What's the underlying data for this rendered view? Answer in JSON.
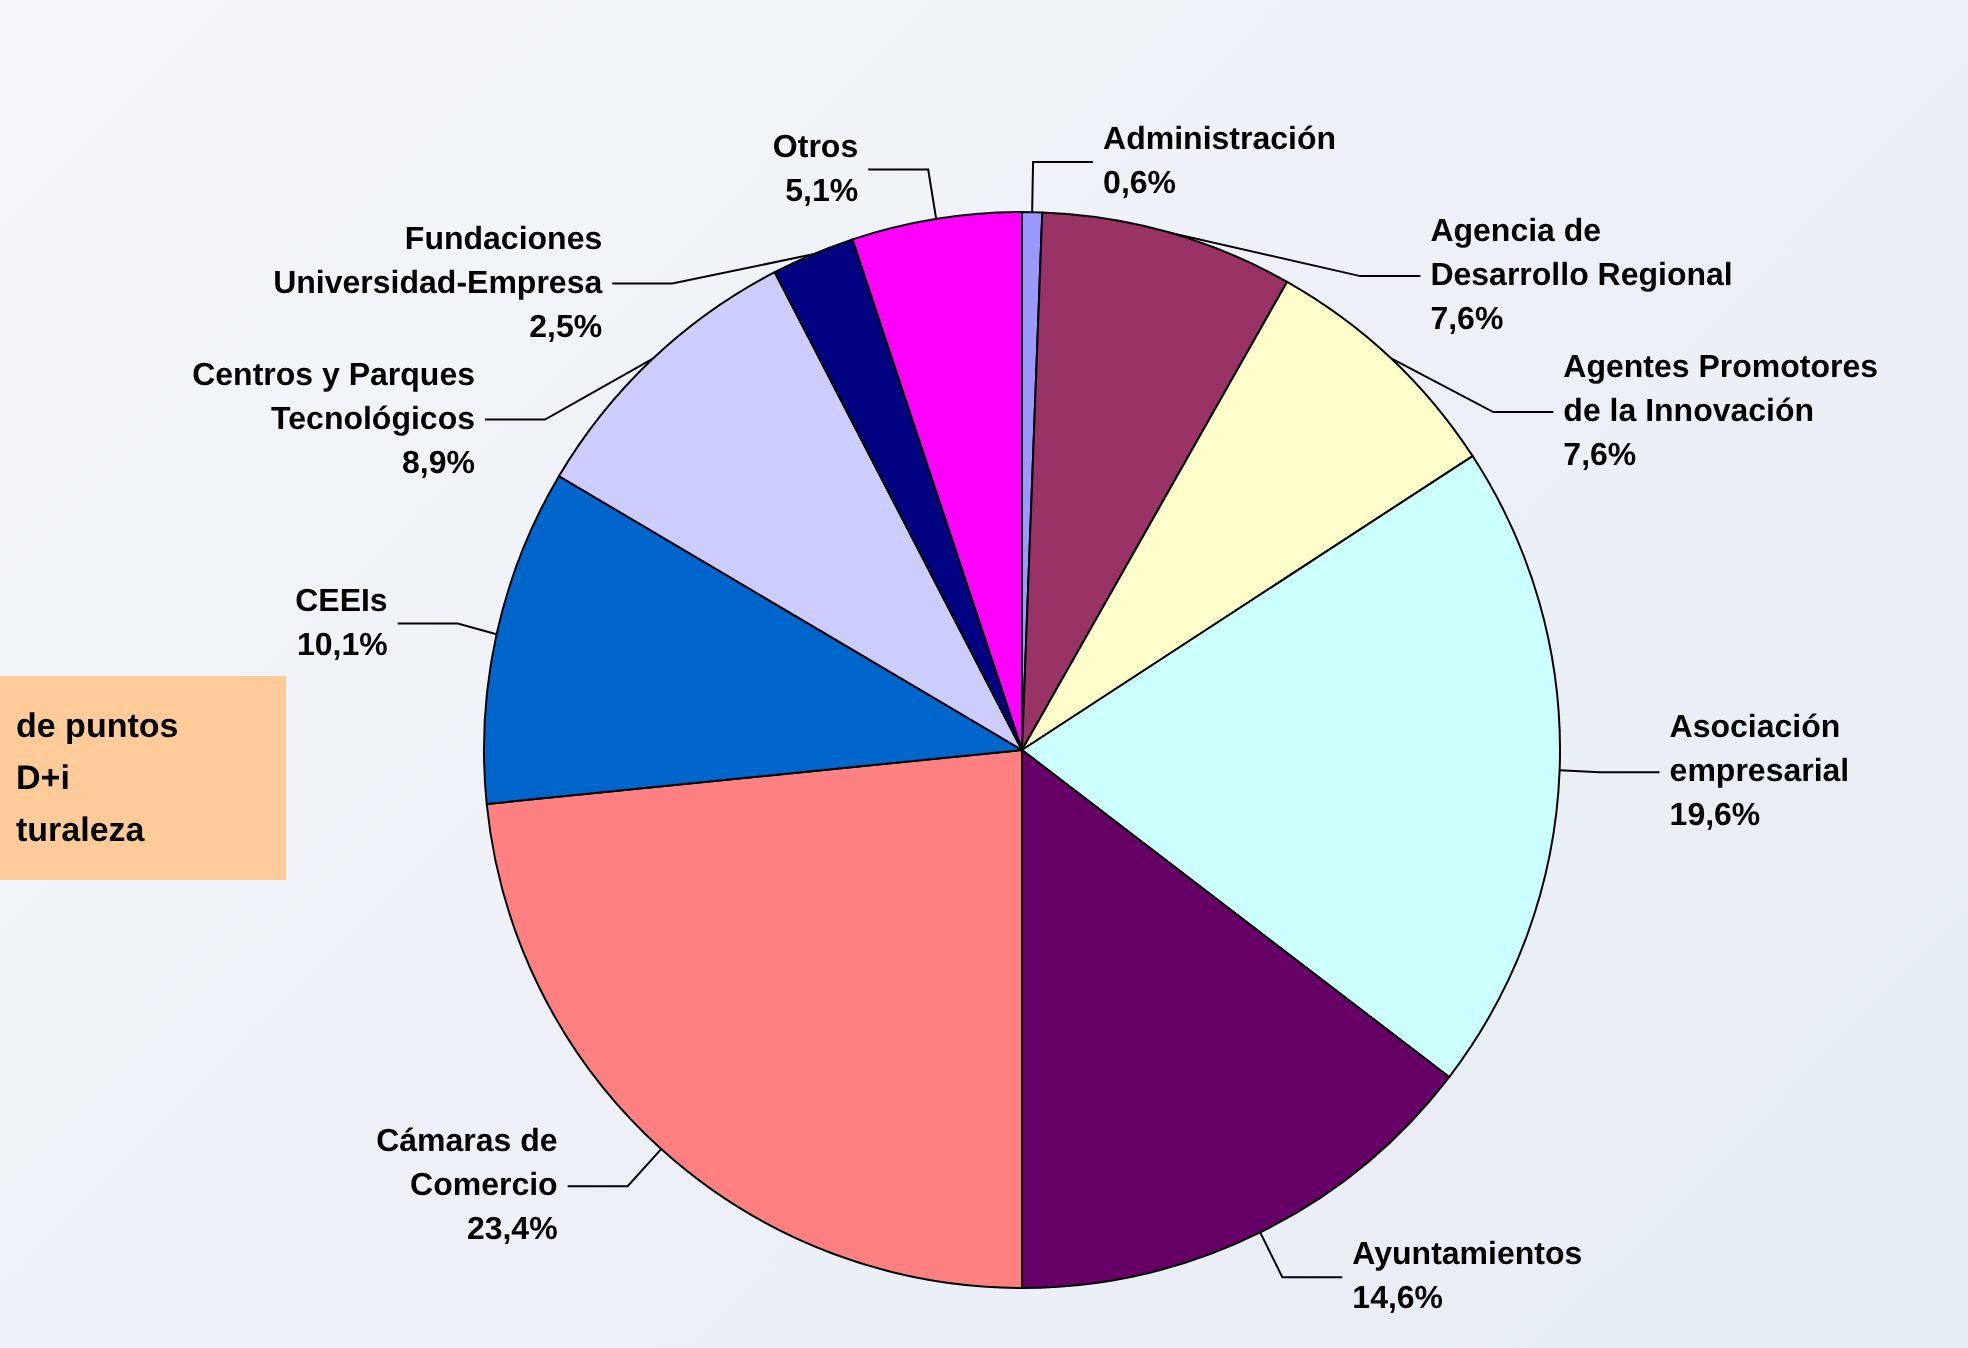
{
  "chart_data": {
    "type": "pie",
    "categories": [
      "Administración",
      "Agencia de\nDesarrollo Regional",
      "Agentes Promotores\nde la Innovación",
      "Asociación\nempresarial",
      "Ayuntamientos",
      "Cámaras de\nComercio",
      "CEEIs",
      "Centros y Parques\nTecnológicos",
      "Fundaciones\nUniversidad-Empresa",
      "Otros"
    ],
    "values": [
      0.6,
      7.6,
      7.6,
      19.6,
      14.6,
      23.4,
      10.1,
      8.9,
      2.5,
      5.1
    ],
    "value_labels": [
      "0,6%",
      "7,6%",
      "7,6%",
      "19,6%",
      "14,6%",
      "23,4%",
      "10,1%",
      "8,9%",
      "2,5%",
      "5,1%"
    ],
    "colors": [
      "#9999ff",
      "#993366",
      "#ffffcc",
      "#ccffff",
      "#660066",
      "#ff8080",
      "#0066cc",
      "#ccccff",
      "#000080",
      "#ff00ff"
    ],
    "annotations": [
      "de puntos\nD+i\nturaleza"
    ],
    "legend": false
  }
}
